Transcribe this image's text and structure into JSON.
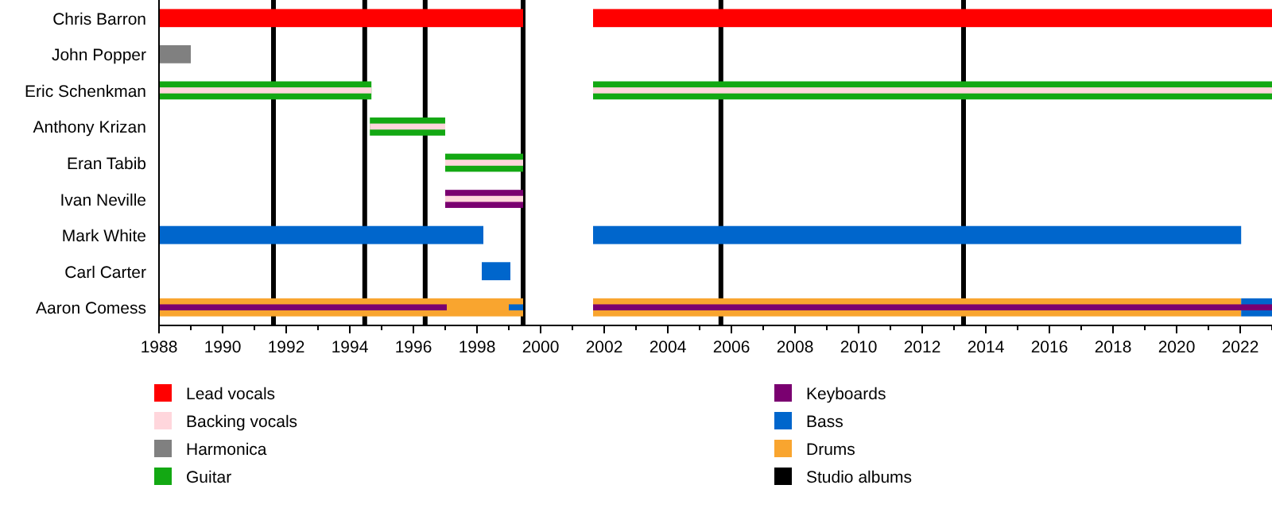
{
  "chart_data": {
    "type": "bar",
    "orientation": "horizontal",
    "categories": [
      "Chris Barron",
      "John Popper",
      "Eric Schenkman",
      "Anthony Krizan",
      "Eran Tabib",
      "Ivan Neville",
      "Mark White",
      "Carl Carter",
      "Aaron Comess"
    ],
    "series": [
      {
        "name": "Lead vocals",
        "color": "#ff0000",
        "base": [
          1988,
          null,
          null,
          null,
          null,
          null,
          null,
          null,
          null
        ],
        "values": [
          11.45,
          null,
          null,
          null,
          null,
          null,
          null,
          null,
          null
        ]
      },
      {
        "color": "#ff0000",
        "base": [
          2001.65,
          null,
          null,
          null,
          null,
          null,
          null,
          null,
          null
        ],
        "values": [
          21.35,
          null,
          null,
          null,
          null,
          null,
          null,
          null,
          null
        ]
      },
      {
        "name": "Backing vocals",
        "color": "#ffd6dc",
        "base": [
          null,
          null,
          1988,
          1994.63,
          1997,
          1997,
          null,
          null,
          null
        ],
        "values": [
          null,
          null,
          6.68,
          2.37,
          2.45,
          2.45,
          null,
          null,
          null
        ]
      },
      {
        "color": "#ffd6dc",
        "base": [
          null,
          null,
          2001.65,
          null,
          null,
          null,
          null,
          null,
          null
        ],
        "values": [
          null,
          null,
          21.35,
          null,
          null,
          null,
          null,
          null,
          null
        ]
      },
      {
        "name": "Harmonica",
        "color": "#808080",
        "base": [
          null,
          1988,
          null,
          null,
          null,
          null,
          null,
          null,
          null
        ],
        "values": [
          null,
          1,
          null,
          null,
          null,
          null,
          null,
          null,
          null
        ]
      },
      {
        "name": "Guitar",
        "color": "#13a813",
        "base": [
          null,
          null,
          1988,
          1994.63,
          1997,
          null,
          null,
          null,
          null
        ],
        "values": [
          null,
          null,
          6.68,
          2.37,
          2.45,
          null,
          null,
          null,
          null
        ]
      },
      {
        "color": "#13a813",
        "base": [
          null,
          null,
          2001.65,
          null,
          null,
          null,
          null,
          null,
          null
        ],
        "values": [
          null,
          null,
          21.35,
          null,
          null,
          null,
          null,
          null,
          null
        ]
      },
      {
        "name": "Keyboards",
        "color": "#7a0070",
        "base": [
          null,
          null,
          null,
          null,
          null,
          1997,
          null,
          null,
          1988
        ],
        "values": [
          null,
          null,
          null,
          null,
          null,
          2.45,
          null,
          null,
          9.05
        ]
      },
      {
        "color": "#7a0070",
        "base": [
          null,
          null,
          null,
          null,
          null,
          null,
          null,
          null,
          2001.65
        ],
        "values": [
          null,
          null,
          null,
          null,
          null,
          null,
          null,
          null,
          21.35
        ]
      },
      {
        "name": "Bass",
        "color": "#0066cc",
        "base": [
          null,
          null,
          null,
          null,
          null,
          null,
          1988,
          1998.15,
          1999
        ],
        "values": [
          null,
          null,
          null,
          null,
          null,
          null,
          10.2,
          0.9,
          0.45
        ]
      },
      {
        "color": "#0066cc",
        "base": [
          null,
          null,
          null,
          null,
          null,
          null,
          2001.65,
          null,
          2022.03
        ],
        "values": [
          null,
          null,
          null,
          null,
          null,
          null,
          20.38,
          null,
          0.97
        ]
      },
      {
        "name": "Drums",
        "color": "#f9a52f",
        "base": [
          null,
          null,
          null,
          null,
          null,
          null,
          null,
          null,
          1988
        ],
        "values": [
          null,
          null,
          null,
          null,
          null,
          null,
          null,
          null,
          11.45
        ]
      },
      {
        "color": "#f9a52f",
        "base": [
          null,
          null,
          null,
          null,
          null,
          null,
          null,
          null,
          2001.65
        ],
        "values": [
          null,
          null,
          null,
          null,
          null,
          null,
          null,
          null,
          20.38
        ]
      }
    ],
    "xlim": [
      1988,
      2023
    ],
    "xticks": [
      1988,
      {
        "value": 1989,
        "label": null
      },
      1990,
      {
        "value": 1991,
        "label": null
      },
      1992,
      {
        "value": 1993,
        "label": null
      },
      1994,
      {
        "value": 1995,
        "label": null
      },
      1996,
      {
        "value": 1997,
        "label": null
      },
      1998,
      {
        "value": 1999,
        "label": null
      },
      2000,
      {
        "value": 2001,
        "label": null
      },
      2002,
      {
        "value": 2003,
        "label": null
      },
      2004,
      {
        "value": 2005,
        "label": null
      },
      2006,
      {
        "value": 2007,
        "label": null
      },
      2008,
      {
        "value": 2009,
        "label": null
      },
      2010,
      {
        "value": 2011,
        "label": null
      },
      2012,
      {
        "value": 2013,
        "label": null
      },
      2014,
      {
        "value": 2015,
        "label": null
      },
      2016,
      {
        "value": 2017,
        "label": null
      },
      2018,
      {
        "value": 2019,
        "label": null
      },
      2020,
      {
        "value": 2021,
        "label": null
      },
      2022,
      {
        "value": 2023,
        "label": null
      }
    ],
    "ref_lines": [
      {
        "axis": "x",
        "value": 1991.6,
        "label": "Studio albums",
        "color": "#000000"
      },
      {
        "axis": "x",
        "value": 1994.47,
        "color": "#000000"
      },
      {
        "axis": "x",
        "value": 1996.37,
        "color": "#000000"
      },
      {
        "axis": "x",
        "value": 1999.45,
        "color": "#000000"
      },
      {
        "axis": "x",
        "value": 2005.67,
        "color": "#000000"
      },
      {
        "axis": "x",
        "value": 2013.3,
        "color": "#000000"
      }
    ],
    "grid": false,
    "legend": "bottom"
  }
}
